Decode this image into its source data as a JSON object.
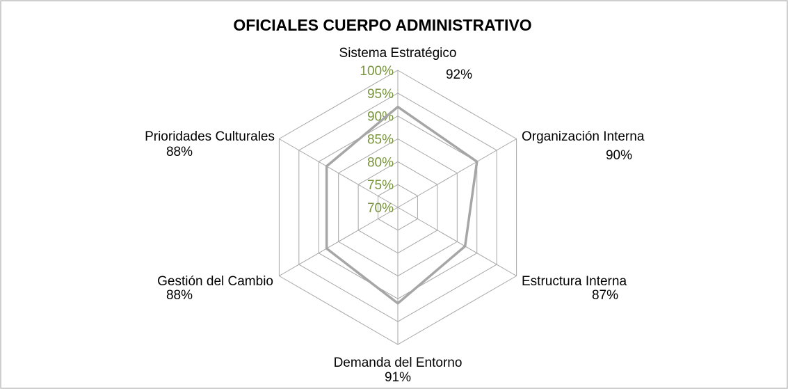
{
  "chart_data": {
    "type": "radar",
    "title": "OFICIALES CUERPO ADMINISTRATIVO",
    "categories": [
      "Sistema Estratégico",
      "Organización Interna",
      "Estructura Interna",
      "Demanda del Entorno",
      "Gestión del Cambio",
      "Prioridades Culturales"
    ],
    "values": [
      92,
      90,
      87,
      91,
      88,
      88
    ],
    "value_labels": [
      "92%",
      "90%",
      "87%",
      "91%",
      "88%",
      "88%"
    ],
    "color": "#a6a6a6",
    "ylim": [
      70,
      100
    ],
    "yticks": [
      {
        "value": 70,
        "label": "70%"
      },
      {
        "value": 75,
        "label": "75%"
      },
      {
        "value": 80,
        "label": "80%"
      },
      {
        "value": 85,
        "label": "85%"
      },
      {
        "value": 90,
        "label": "90%"
      },
      {
        "value": 95,
        "label": "95%"
      },
      {
        "value": 100,
        "label": "100%"
      }
    ],
    "tick_color": "#77933c",
    "grid": true
  }
}
